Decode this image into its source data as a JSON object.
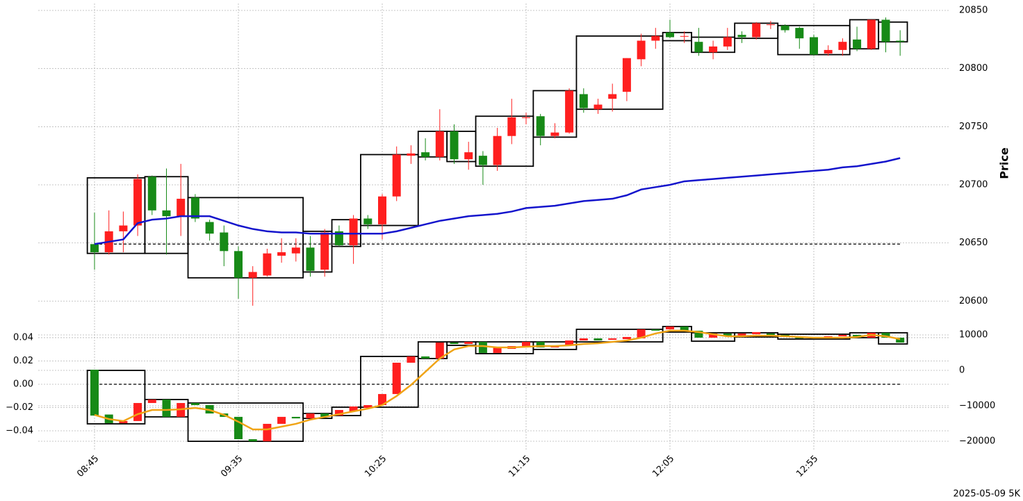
{
  "chart_data": [
    {
      "type": "candlestick",
      "ylabel": "Price",
      "up_color": "#ff1f1f",
      "down_color": "#178a17",
      "ylim": [
        20587,
        20856
      ],
      "yticks": [
        20600,
        20650,
        20700,
        20750,
        20800,
        20850
      ],
      "grid": true,
      "hline": 20649,
      "open": [
        20649,
        20642,
        20660,
        20665,
        20707,
        20678,
        20673,
        20689,
        20668,
        20659,
        20643,
        20620,
        20622,
        20639,
        20641,
        20646,
        20627,
        20660,
        20648,
        20671,
        20666,
        20690,
        20725,
        20728,
        20724,
        20746,
        20722,
        20725,
        20717,
        20742,
        20758,
        20759,
        20742,
        20745,
        20778,
        20765,
        20774,
        20780,
        20808,
        20824,
        20831,
        20828,
        20823,
        20814,
        20819,
        20829,
        20827,
        20838,
        20837,
        20835,
        20827,
        20813,
        20816,
        20825,
        20817,
        20842,
        20824
      ],
      "high": [
        20676,
        20678,
        20677,
        20709,
        20708,
        20714,
        20718,
        20692,
        20670,
        20665,
        20647,
        20630,
        20645,
        20654,
        20654,
        20656,
        20662,
        20665,
        20674,
        20674,
        20692,
        20733,
        20734,
        20740,
        20765,
        20752,
        20737,
        20729,
        20749,
        20774,
        20762,
        20761,
        20753,
        20783,
        20783,
        20774,
        20787,
        20809,
        20830,
        20835,
        20842,
        20832,
        20835,
        20824,
        20835,
        20832,
        20840,
        20841,
        20838,
        20836,
        20829,
        20820,
        20826,
        20836,
        20842,
        20844,
        20833
      ],
      "low": [
        20627,
        20640,
        20642,
        20656,
        20674,
        20640,
        20656,
        20668,
        20652,
        20630,
        20602,
        20596,
        20621,
        20633,
        20634,
        20621,
        20621,
        20647,
        20632,
        20662,
        20653,
        20686,
        20718,
        20721,
        20721,
        20718,
        20713,
        20700,
        20712,
        20735,
        20752,
        20734,
        20740,
        20744,
        20762,
        20761,
        20763,
        20772,
        20802,
        20817,
        20826,
        20822,
        20811,
        20808,
        20816,
        20822,
        20825,
        20834,
        20831,
        20817,
        20811,
        20811,
        20811,
        20815,
        20816,
        20814,
        20811
      ],
      "close": [
        20642,
        20660,
        20665,
        20705,
        20678,
        20673,
        20688,
        20671,
        20658,
        20643,
        20620,
        20625,
        20641,
        20642,
        20646,
        20626,
        20659,
        20648,
        20671,
        20666,
        20690,
        20726,
        20727,
        20724,
        20746,
        20722,
        20728,
        20717,
        20742,
        20758,
        20758,
        20742,
        20745,
        20781,
        20766,
        20769,
        20778,
        20809,
        20824,
        20828,
        20827,
        20828,
        20814,
        20819,
        20827,
        20827,
        20839,
        20838,
        20833,
        20826,
        20812,
        20816,
        20823,
        20817,
        20842,
        20823,
        20823
      ],
      "line": {
        "color": "#1414cc",
        "values": [
          20649,
          20651,
          20653,
          20667,
          20670,
          20671,
          20673,
          20673,
          20673,
          20669,
          20665,
          20662,
          20660,
          20659,
          20659,
          20658,
          20658,
          20658,
          20658,
          20658,
          20658,
          20660,
          20663,
          20666,
          20669,
          20671,
          20673,
          20674,
          20675,
          20677,
          20680,
          20681,
          20682,
          20684,
          20686,
          20687,
          20688,
          20691,
          20696,
          20698,
          20700,
          20703,
          20704,
          20705,
          20706,
          20707,
          20708,
          20709,
          20710,
          20711,
          20712,
          20713,
          20715,
          20716,
          20718,
          20720,
          20723
        ]
      },
      "boxes": [
        {
          "from": 0,
          "to": 3,
          "high": 20706,
          "low": 20641
        },
        {
          "from": 4,
          "to": 6,
          "high": 20707,
          "low": 20641
        },
        {
          "from": 7,
          "to": 14,
          "high": 20689,
          "low": 20620
        },
        {
          "from": 15,
          "to": 16,
          "high": 20660,
          "low": 20625
        },
        {
          "from": 17,
          "to": 18,
          "high": 20670,
          "low": 20647
        },
        {
          "from": 19,
          "to": 22,
          "high": 20726,
          "low": 20665
        },
        {
          "from": 23,
          "to": 24,
          "high": 20746,
          "low": 20724
        },
        {
          "from": 25,
          "to": 26,
          "high": 20746,
          "low": 20720
        },
        {
          "from": 27,
          "to": 30,
          "high": 20759,
          "low": 20716
        },
        {
          "from": 31,
          "to": 33,
          "high": 20781,
          "low": 20741
        },
        {
          "from": 34,
          "to": 39,
          "high": 20828,
          "low": 20765
        },
        {
          "from": 40,
          "to": 41,
          "high": 20831,
          "low": 20824
        },
        {
          "from": 42,
          "to": 44,
          "high": 20827,
          "low": 20814
        },
        {
          "from": 45,
          "to": 47,
          "high": 20839,
          "low": 20826
        },
        {
          "from": 48,
          "to": 52,
          "high": 20837,
          "low": 20812
        },
        {
          "from": 53,
          "to": 54,
          "high": 20842,
          "low": 20817
        },
        {
          "from": 55,
          "to": 56,
          "high": 20840,
          "low": 20823
        }
      ]
    },
    {
      "type": "candlestick",
      "up_color": "#ff1f1f",
      "down_color": "#178a17",
      "categories": [
        "08:45",
        null,
        null,
        null,
        null,
        null,
        null,
        null,
        null,
        null,
        "09:35",
        null,
        null,
        null,
        null,
        null,
        null,
        null,
        null,
        null,
        "10:25",
        null,
        null,
        null,
        null,
        null,
        null,
        null,
        null,
        null,
        "11:15",
        null,
        null,
        null,
        null,
        null,
        null,
        null,
        null,
        null,
        "12:05",
        null,
        null,
        null,
        null,
        null,
        null,
        null,
        null,
        null,
        "12:55",
        null,
        null,
        null,
        null,
        null,
        null
      ],
      "ylim": [
        -0.0567,
        0.0543
      ],
      "yticks": [
        {
          "value": -0.04,
          "label": "−0.04"
        },
        {
          "value": -0.02,
          "label": "−0.02"
        },
        {
          "value": 0,
          "label": "0.00"
        },
        0.02,
        0.04
      ],
      "y2lim": [
        -22549,
        13922
      ],
      "y2ticks": [
        {
          "value": -20000,
          "label": "−20000"
        },
        {
          "value": -10000,
          "label": "−10000"
        },
        0,
        10000
      ],
      "grid": true,
      "hline": 0,
      "open": [
        0.0125,
        -0.026,
        -0.0334,
        -0.0316,
        -0.0161,
        -0.0131,
        -0.028,
        -0.0161,
        -0.0179,
        -0.0251,
        -0.028,
        -0.0472,
        -0.049,
        -0.034,
        -0.028,
        -0.0293,
        -0.0251,
        -0.0269,
        -0.0233,
        -0.0203,
        -0.0179,
        -0.0084,
        0.0185,
        0.0239,
        0.0221,
        0.0358,
        0.0346,
        0.0364,
        0.0269,
        0.0304,
        0.0322,
        0.0364,
        0.0316,
        0.0334,
        0.0376,
        0.0394,
        0.0382,
        0.0388,
        0.0394,
        0.0472,
        0.0472,
        0.0496,
        0.046,
        0.04,
        0.0436,
        0.0418,
        0.043,
        0.0436,
        0.0424,
        0.0406,
        0.04,
        0.0394,
        0.0412,
        0.0424,
        0.04,
        0.0442,
        0.04
      ],
      "close": [
        -0.0269,
        -0.0334,
        -0.0316,
        -0.0161,
        -0.0131,
        -0.028,
        -0.0161,
        -0.0179,
        -0.0251,
        -0.028,
        -0.0472,
        -0.049,
        -0.034,
        -0.028,
        -0.0293,
        -0.0251,
        -0.028,
        -0.0221,
        -0.0191,
        -0.0179,
        -0.0084,
        0.0185,
        0.0239,
        0.0221,
        0.0358,
        0.0346,
        0.0364,
        0.0269,
        0.0316,
        0.0328,
        0.0364,
        0.0316,
        0.0334,
        0.0376,
        0.0394,
        0.0376,
        0.0394,
        0.0406,
        0.0472,
        0.046,
        0.0496,
        0.046,
        0.04,
        0.0436,
        0.0418,
        0.0436,
        0.0448,
        0.0424,
        0.0406,
        0.0394,
        0.0394,
        0.0412,
        0.0424,
        0.04,
        0.0442,
        0.04,
        0.0358
      ],
      "line": {
        "color": "#f0a416",
        "values": [
          -0.0263,
          -0.0299,
          -0.0316,
          -0.0257,
          -0.0221,
          -0.0221,
          -0.0215,
          -0.0203,
          -0.0221,
          -0.0263,
          -0.0322,
          -0.0388,
          -0.0388,
          -0.0364,
          -0.034,
          -0.0304,
          -0.0281,
          -0.0257,
          -0.0233,
          -0.0209,
          -0.0179,
          -0.0101,
          -0.0006,
          0.0107,
          0.0221,
          0.0299,
          0.0328,
          0.0328,
          0.0316,
          0.0316,
          0.0322,
          0.0328,
          0.0328,
          0.0334,
          0.0346,
          0.0352,
          0.0364,
          0.0376,
          0.04,
          0.0436,
          0.046,
          0.046,
          0.0448,
          0.043,
          0.0412,
          0.0412,
          0.0418,
          0.0418,
          0.0412,
          0.0406,
          0.04,
          0.04,
          0.04,
          0.0406,
          0.0424,
          0.0412,
          0.0388
        ]
      },
      "boxes": [
        {
          "from": 0,
          "to": 3,
          "high": 0.0119,
          "low": -0.034
        },
        {
          "from": 4,
          "to": 6,
          "high": -0.0131,
          "low": -0.028
        },
        {
          "from": 7,
          "to": 14,
          "high": -0.0161,
          "low": -0.049
        },
        {
          "from": 15,
          "to": 16,
          "high": -0.0251,
          "low": -0.0293
        },
        {
          "from": 17,
          "to": 18,
          "high": -0.0197,
          "low": -0.0269
        },
        {
          "from": 19,
          "to": 22,
          "high": 0.0239,
          "low": -0.0197
        },
        {
          "from": 23,
          "to": 24,
          "high": 0.0364,
          "low": 0.0221
        },
        {
          "from": 25,
          "to": 26,
          "high": 0.0364,
          "low": 0.0334
        },
        {
          "from": 27,
          "to": 30,
          "high": 0.0364,
          "low": 0.0263
        },
        {
          "from": 31,
          "to": 33,
          "high": 0.0364,
          "low": 0.0299
        },
        {
          "from": 34,
          "to": 39,
          "high": 0.0472,
          "low": 0.0364
        },
        {
          "from": 40,
          "to": 41,
          "high": 0.0496,
          "low": 0.0448
        },
        {
          "from": 42,
          "to": 44,
          "high": 0.0442,
          "low": 0.037
        },
        {
          "from": 45,
          "to": 47,
          "high": 0.0442,
          "low": 0.0406
        },
        {
          "from": 48,
          "to": 52,
          "high": 0.043,
          "low": 0.0388
        },
        {
          "from": 53,
          "to": 54,
          "high": 0.0442,
          "low": 0.04
        },
        {
          "from": 55,
          "to": 56,
          "high": 0.0442,
          "low": 0.0346
        }
      ]
    }
  ],
  "footer": "2025-05-09 5K"
}
